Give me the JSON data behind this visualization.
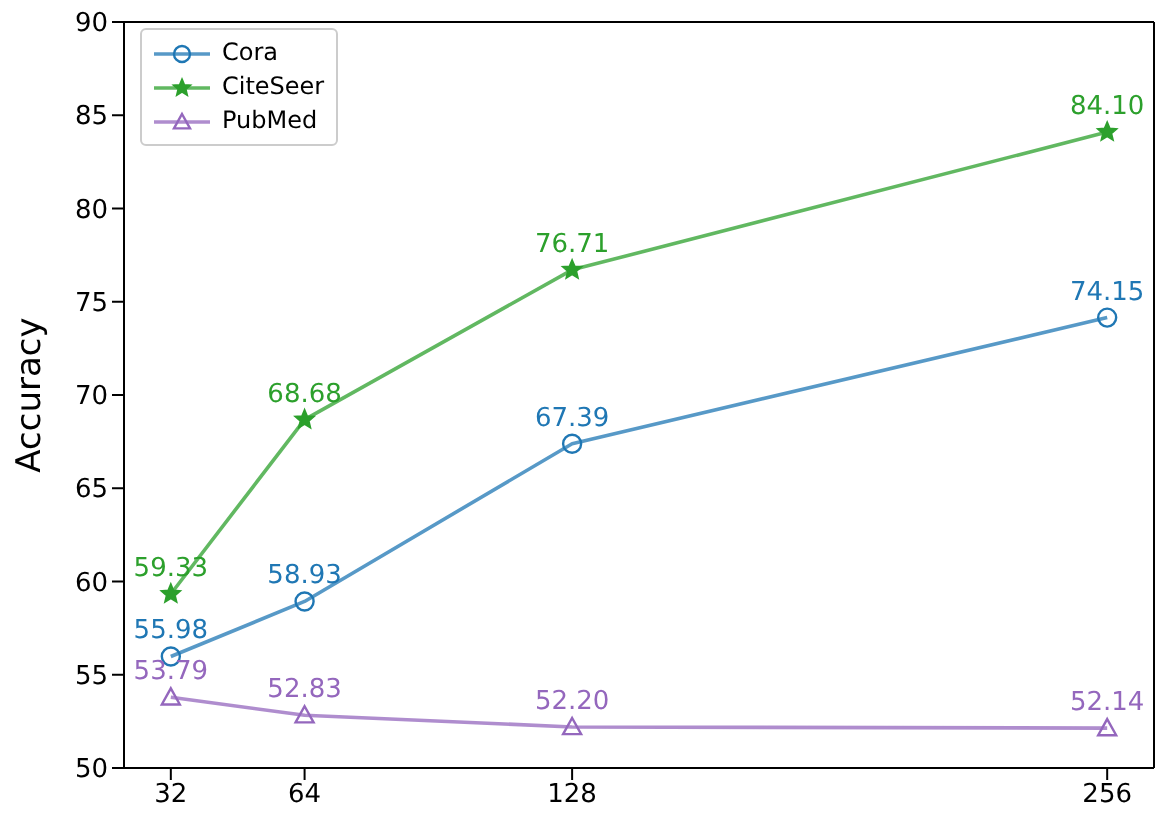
{
  "chart_data": {
    "type": "line",
    "ylabel": "Accuracy",
    "x": [
      32,
      64,
      128,
      256
    ],
    "xlim": [
      20.8,
      267.2
    ],
    "xticks": [
      32,
      64,
      128,
      256
    ],
    "ylim": [
      50,
      90
    ],
    "yticks": [
      50,
      55,
      60,
      65,
      70,
      75,
      80,
      85,
      90
    ],
    "series": [
      {
        "name": "Cora",
        "color": "#1f77b4",
        "marker": "circle",
        "values": [
          55.98,
          58.93,
          67.39,
          74.15
        ],
        "value_labels": [
          "55.98",
          "58.93",
          "67.39",
          "74.15"
        ]
      },
      {
        "name": "CiteSeer",
        "color": "#2ca02c",
        "marker": "star",
        "values": [
          59.33,
          68.68,
          76.71,
          84.1
        ],
        "value_labels": [
          "59.33",
          "68.68",
          "76.71",
          "84.10"
        ]
      },
      {
        "name": "PubMed",
        "color": "#9467bd",
        "marker": "triangle",
        "values": [
          53.79,
          52.83,
          52.2,
          52.14
        ],
        "value_labels": [
          "53.79",
          "52.83",
          "52.20",
          "52.14"
        ]
      }
    ],
    "grid": false,
    "legend": "top left"
  }
}
